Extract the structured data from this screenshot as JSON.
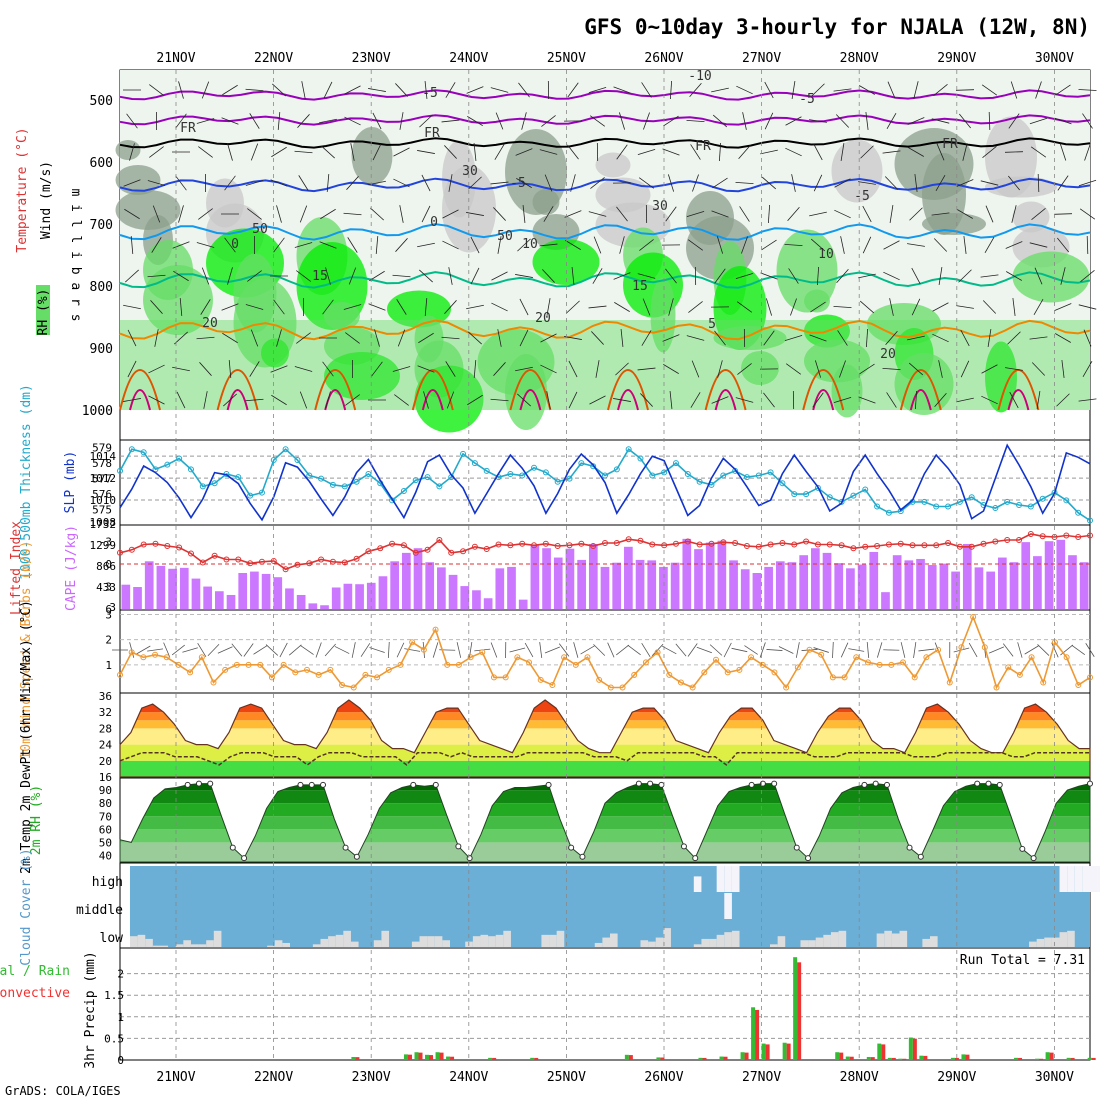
{
  "title": "GFS 0~10day 3-hourly for NJALA (12W, 8N)",
  "credit": "GrADS: COLA/IGES",
  "dates": [
    "21NOV",
    "22NOV",
    "23NOV",
    "24NOV",
    "25NOV",
    "26NOV",
    "27NOV",
    "28NOV",
    "29NOV",
    "30NOV"
  ],
  "colors": {
    "rh_light": "#c8c8c8",
    "rh_mid": "#8ca08c",
    "rh_green": "#66dd66",
    "rh_bright": "#00ee00",
    "temp_purple": "#9900bb",
    "temp_black": "#000000",
    "temp_blue": "#2244dd",
    "temp_lightblue": "#1199ee",
    "temp_teal": "#00bb88",
    "temp_orange": "#ee8800",
    "temp_darkorange": "#dd5500",
    "temp_magenta": "#cc0077",
    "slp": "#1133cc",
    "thickness": "#22aacc",
    "lifted_index": "#dd3333",
    "cape": "#cc77ff",
    "wind": "#ee9933",
    "cloud_bg": "#6baed6",
    "cloud_fill": "#dddddd",
    "precip_total": "#33bb33",
    "precip_conv": "#ee3333"
  },
  "chart_data": [
    {
      "type": "heatmap",
      "name": "upper_air",
      "ylabel": "m i l l i b a r s",
      "yticks": [
        "500",
        "600",
        "700",
        "800",
        "900",
        "1000"
      ],
      "legend_labels": {
        "wind": "Wind (m/s)",
        "temp": "Temperature (°C)",
        "rh": "RH (%)"
      },
      "contour_labels": [
        "-10",
        "-5",
        "-5",
        "FR",
        "FR",
        "FR",
        "FR",
        "-5",
        "-5",
        "0",
        "0",
        "10",
        "10",
        "15",
        "15",
        "20",
        "20",
        "20",
        "30",
        "30",
        "50",
        "50",
        "5"
      ]
    },
    {
      "type": "line",
      "name": "slp_thickness",
      "ylabel_left": "1000-500mb Thickness (dm)",
      "ylabel_right": "SLP (mb)",
      "yticks_left": [
        "575",
        "576",
        "577",
        "578",
        "579"
      ],
      "yticks_right": [
        "1008",
        "1010",
        "1012",
        "1014"
      ],
      "slp": [
        1009.3,
        1011,
        1013.1,
        1012.5,
        1011.6,
        1010.2,
        1008.4,
        1010.1,
        1012.5,
        1012.3,
        1011.5,
        1009.7,
        1008.2,
        1010.3,
        1013.4,
        1013,
        1011.7,
        1010.1,
        1008.6,
        1010.3,
        1012.5,
        1013.7,
        1011.8,
        1010.1,
        1008.4,
        1010.7,
        1013.5,
        1014.1,
        1012.3,
        1011.1,
        1008.8,
        1010.6,
        1012.4,
        1014.1,
        1012.9,
        1011.3,
        1008.8,
        1010.6,
        1012.8,
        1014.2,
        1013.2,
        1011.6,
        1008.8,
        1010.5,
        1012.4,
        1014,
        1013.6,
        1011.1,
        1008.6,
        1009.5,
        1012,
        1013.8,
        1012.8,
        1011.2,
        1009.5,
        1010,
        1012.4,
        1014.1,
        1012.6,
        1011.2,
        1009,
        1009.7,
        1012.6,
        1014.1,
        1012.4,
        1010.9,
        1009.1,
        1010,
        1012.4,
        1014.1,
        1012.9,
        1011.4,
        1008.3,
        1009,
        1012,
        1015,
        1013.2,
        1011.2,
        1008.8,
        1010.6,
        1014.3,
        1013.9,
        1013.3
      ],
      "thickness": [
        577.5,
        578.9,
        578.7,
        577.6,
        577.9,
        578.3,
        577.6,
        576.5,
        576.7,
        577.3,
        577.1,
        575.9,
        576.1,
        578.2,
        578.9,
        578.2,
        577.2,
        577,
        576.6,
        576.5,
        576.8,
        577.3,
        576.7,
        575.6,
        576.2,
        576.9,
        577.1,
        576.5,
        577.1,
        578.6,
        578,
        577.5,
        577.1,
        577.3,
        577.2,
        577.7,
        577.4,
        576.8,
        577,
        578,
        577.8,
        577.2,
        577.6,
        578.9,
        578.3,
        577.2,
        577.4,
        578,
        577.3,
        576.8,
        576.6,
        577.2,
        577.5,
        577.1,
        577.2,
        577.4,
        576.7,
        576,
        576,
        576.4,
        575.8,
        575.5,
        575.9,
        576.3,
        575.2,
        574.8,
        574.9,
        575.5,
        575.5,
        575.2,
        575.2,
        575.5,
        575.8,
        575.3,
        575.1,
        575.5,
        575.3,
        575.2,
        575.7,
        576.1,
        575.6,
        574.8,
        574.3
      ]
    },
    {
      "type": "bar",
      "name": "cape_li",
      "ylabel_left": "Lifted Index",
      "ylabel_right": "CAPE (J/kg)",
      "yticks_left": [
        "-3",
        "0",
        "3",
        "6"
      ],
      "yticks_right": [
        "1732",
        "1299",
        "866",
        "433",
        "3"
      ],
      "cape": [
        520,
        470,
        1020,
        920,
        860,
        880,
        650,
        480,
        380,
        300,
        770,
        800,
        750,
        680,
        440,
        300,
        120,
        80,
        460,
        540,
        530,
        560,
        700,
        1020,
        1200,
        1300,
        1000,
        890,
        730,
        490,
        400,
        230,
        870,
        900,
        200,
        1370,
        1300,
        1100,
        1290,
        1050,
        1390,
        900,
        990,
        1330,
        1050,
        1040,
        900,
        990,
        1500,
        1280,
        1420,
        1460,
        1040,
        850,
        770,
        900,
        1020,
        1000,
        1150,
        1300,
        1200,
        980,
        870,
        950,
        1220,
        360,
        1150,
        1040,
        1070,
        940,
        970,
        800,
        1390,
        890,
        800,
        1100,
        1000,
        1430,
        1130,
        1450,
        1480,
        1150,
        1000
      ],
      "lifted_index": [
        -1.5,
        -1.9,
        -2.6,
        -2.7,
        -2.4,
        -2.2,
        -1.4,
        -0.2,
        -1.1,
        -0.6,
        -0.6,
        -0.1,
        -0.3,
        -0.4,
        0.7,
        0.1,
        -0.1,
        -0.6,
        -0.3,
        -0.2,
        -0.7,
        -1.7,
        -2.1,
        -2.7,
        -2.5,
        -1.5,
        -1.9,
        -3.2,
        -1.5,
        -1.7,
        -2.3,
        -2.0,
        -2.6,
        -2.5,
        -2.7,
        -2.5,
        -2.7,
        -2.4,
        -2.5,
        -2.7,
        -2.4,
        -2.8,
        -2.8,
        -3.3,
        -3.1,
        -2.6,
        -2.5,
        -2.7,
        -3.0,
        -2.6,
        -2.7,
        -2.9,
        -2.8,
        -2.4,
        -2.3,
        -2.6,
        -2.8,
        -2.6,
        -3.0,
        -2.6,
        -2.6,
        -2.5,
        -2.1,
        -2.3,
        -2.4,
        -2.6,
        -2.7,
        -2.5,
        -2.5,
        -2.5,
        -2.8,
        -2.3,
        -2.3,
        -2.7,
        -3.0,
        -3.2,
        -3.2,
        -4.0,
        -3.7,
        -3.6,
        -3.8,
        -3.6,
        -3.8
      ]
    },
    {
      "type": "line",
      "name": "wind10m",
      "ylabel": "10m Wind Speed & Barbs (m/s)",
      "yticks": [
        "1",
        "2",
        "3"
      ],
      "speed": [
        0.6,
        1.5,
        1.3,
        1.4,
        1.3,
        1.0,
        0.7,
        1.3,
        0.3,
        0.8,
        1.0,
        1.0,
        1.0,
        0.5,
        1.0,
        0.7,
        0.8,
        0.6,
        0.8,
        0.2,
        0.1,
        0.6,
        0.5,
        0.8,
        1.0,
        1.9,
        1.6,
        2.4,
        1.0,
        1.0,
        1.3,
        1.5,
        0.5,
        0.5,
        1.3,
        1.1,
        0.4,
        0.2,
        1.3,
        1.0,
        1.3,
        0.4,
        0.1,
        0.1,
        0.6,
        1.1,
        1.5,
        0.6,
        0.3,
        0.1,
        0.7,
        1.2,
        0.7,
        0.8,
        1.3,
        1.0,
        0.7,
        0.1,
        0.9,
        1.6,
        1.4,
        0.5,
        0.5,
        1.3,
        1.1,
        1.0,
        1.0,
        1.1,
        0.5,
        1.3,
        1.6,
        0.3,
        1.7,
        2.9,
        1.7,
        0.1,
        0.9,
        0.6,
        1.3,
        0.3,
        1.9,
        1.3,
        0.2,
        0.5
      ]
    },
    {
      "type": "area",
      "name": "temp2m",
      "ylabel": "2m Temp 2m DewPt (6hr Min/Max) (°C)",
      "yticks": [
        "16",
        "20",
        "24",
        "28",
        "32",
        "36"
      ],
      "temp": [
        24,
        27,
        33,
        34,
        32,
        29,
        25,
        24,
        24,
        23,
        27,
        33,
        34,
        33,
        29,
        25,
        24,
        24,
        23,
        27,
        33,
        35,
        33,
        30,
        25,
        23,
        23,
        22,
        27,
        32,
        33,
        33,
        29,
        25,
        24,
        23,
        22,
        27,
        33,
        35,
        33,
        29,
        25,
        23,
        22,
        22,
        27,
        32,
        33,
        33,
        30,
        25,
        24,
        23,
        22,
        27,
        31,
        33,
        33,
        30,
        25,
        24,
        23,
        22,
        27,
        31,
        33,
        33,
        30,
        25,
        23,
        23,
        22,
        27,
        33,
        34,
        32,
        29,
        25,
        23,
        22,
        22,
        27,
        33,
        34,
        32,
        29,
        25,
        23,
        23
      ],
      "dewpoint": [
        20,
        21,
        22,
        22,
        22,
        21,
        21,
        21,
        20,
        19,
        21,
        22,
        22,
        22,
        21,
        21,
        21,
        19,
        21,
        22,
        22,
        22,
        21,
        21,
        21,
        21,
        19,
        22,
        22,
        22,
        21,
        22,
        21,
        21,
        21,
        21,
        21,
        22,
        22,
        22,
        22,
        22,
        22,
        21,
        21,
        21,
        20,
        22,
        22,
        22,
        22,
        22,
        22,
        21,
        21,
        19,
        22,
        22,
        22,
        22,
        22,
        22,
        22,
        21,
        21,
        21,
        22,
        22,
        22,
        22,
        22,
        22,
        21,
        21,
        21,
        22,
        22,
        22,
        22,
        22,
        22,
        21,
        21,
        22,
        22,
        22,
        22,
        22,
        22
      ]
    },
    {
      "type": "area",
      "name": "rh2m",
      "ylabel": "2m RH (%)",
      "yticks": [
        "40",
        "50",
        "60",
        "70",
        "80",
        "90"
      ],
      "rh": [
        52,
        50,
        68,
        84,
        91,
        92,
        94,
        95,
        95,
        70,
        46,
        38,
        55,
        76,
        89,
        92,
        94,
        94,
        94,
        68,
        46,
        39,
        56,
        76,
        88,
        92,
        94,
        93,
        94,
        70,
        47,
        38,
        56,
        78,
        89,
        92,
        92,
        93,
        94,
        68,
        46,
        39,
        58,
        80,
        88,
        92,
        95,
        95,
        94,
        70,
        47,
        38,
        58,
        78,
        89,
        92,
        94,
        95,
        95,
        70,
        46,
        38,
        55,
        76,
        88,
        92,
        94,
        95,
        94,
        68,
        46,
        39,
        58,
        78,
        89,
        93,
        95,
        95,
        94,
        70,
        45,
        38,
        58,
        80,
        90,
        93,
        95
      ]
    },
    {
      "type": "heatmap",
      "name": "cloud_cover",
      "ylabel": "Cloud Cover (%)",
      "levels": [
        "high",
        "middle",
        "low"
      ],
      "low": [
        40,
        45,
        30,
        5,
        5,
        0,
        10,
        25,
        10,
        10,
        25,
        60,
        0,
        0,
        0,
        0,
        0,
        0,
        5,
        25,
        15,
        0,
        0,
        0,
        10,
        30,
        40,
        45,
        60,
        20,
        0,
        0,
        25,
        60,
        0,
        0,
        0,
        20,
        40,
        40,
        40,
        25,
        0,
        0,
        20,
        40,
        45,
        40,
        45,
        60,
        0,
        0,
        0,
        0,
        45,
        45,
        60,
        0,
        0,
        0,
        0,
        15,
        35,
        50,
        0,
        0,
        0,
        25,
        20,
        35,
        70,
        0,
        0,
        0,
        10,
        30,
        30,
        45,
        55,
        60,
        0,
        0,
        0,
        0,
        10,
        40,
        0,
        0,
        25,
        25,
        35,
        45,
        55,
        60,
        0,
        0,
        0,
        0,
        50,
        60,
        50,
        60,
        0,
        0,
        30,
        40,
        0,
        0,
        0,
        0,
        0,
        0,
        0,
        0,
        0,
        0,
        0,
        0,
        20,
        30,
        35,
        35,
        55,
        60,
        0,
        0
      ],
      "middle": [
        0,
        0,
        0,
        0,
        0,
        0,
        0,
        0,
        0,
        0,
        0,
        0,
        0,
        0,
        0,
        0,
        0,
        0,
        0,
        0,
        0,
        0,
        0,
        0,
        0,
        0,
        0,
        0,
        0,
        0,
        0,
        0,
        0,
        0,
        0,
        0,
        0,
        0,
        0,
        0,
        0,
        0,
        0,
        0,
        0,
        0,
        0,
        0,
        0,
        0,
        0,
        0,
        0,
        0,
        0,
        0,
        0,
        0,
        0,
        0,
        0,
        0,
        0,
        0,
        0,
        0,
        0,
        0,
        0,
        0,
        0,
        0,
        0,
        0,
        0,
        0,
        0,
        0,
        100,
        0,
        0,
        0,
        0,
        0,
        0,
        0,
        0,
        0,
        0,
        0,
        0,
        0,
        0,
        0,
        0,
        0,
        0,
        0,
        0,
        0,
        0,
        0,
        0,
        0,
        0,
        0,
        0,
        0,
        0,
        0,
        0,
        0,
        0,
        0,
        0,
        0,
        0,
        0,
        0,
        0,
        0,
        0,
        0,
        0,
        0,
        0,
        0,
        0
      ],
      "high": [
        0,
        0,
        0,
        0,
        0,
        0,
        0,
        0,
        0,
        0,
        0,
        0,
        0,
        0,
        0,
        0,
        0,
        0,
        0,
        0,
        0,
        0,
        0,
        0,
        0,
        0,
        0,
        0,
        0,
        0,
        0,
        0,
        0,
        0,
        0,
        0,
        0,
        0,
        0,
        0,
        0,
        0,
        0,
        0,
        0,
        0,
        0,
        0,
        0,
        0,
        0,
        0,
        0,
        0,
        0,
        0,
        0,
        0,
        0,
        0,
        0,
        0,
        0,
        0,
        0,
        0,
        0,
        0,
        0,
        0,
        0,
        0,
        0,
        0,
        60,
        0,
        0,
        100,
        100,
        100,
        0,
        0,
        0,
        0,
        0,
        0,
        0,
        0,
        0,
        0,
        0,
        0,
        0,
        0,
        0,
        0,
        0,
        0,
        0,
        0,
        0,
        0,
        0,
        0,
        0,
        0,
        0,
        0,
        0,
        0,
        0,
        0,
        0,
        0,
        0,
        0,
        0,
        0,
        0,
        0,
        0,
        0,
        100,
        100,
        100,
        100,
        100,
        100
      ]
    },
    {
      "type": "bar",
      "name": "precip",
      "ylabel": "3hr Precip (mm)",
      "legend_labels": {
        "total": "Total / Rain",
        "conv": "Convective"
      },
      "annotation": "Run Total = 7.31",
      "yticks": [
        "0",
        "0.5",
        "1",
        "1.5",
        "2"
      ],
      "ylim": [
        0,
        2.5
      ],
      "x_index": [
        22,
        27,
        28,
        29,
        30,
        31,
        35,
        39,
        48,
        51,
        55,
        57,
        59,
        60,
        61,
        63,
        64,
        68,
        69,
        71,
        72,
        73,
        74,
        75,
        76,
        79,
        80,
        85,
        87,
        88,
        90,
        92,
        95,
        98
      ],
      "total": [
        0.07,
        0.13,
        0.18,
        0.12,
        0.18,
        0.08,
        0.05,
        0.05,
        0.12,
        0.06,
        0.05,
        0.08,
        0.18,
        1.22,
        0.38,
        0.4,
        2.38,
        0.18,
        0.08,
        0.07,
        0.38,
        0.05,
        0.03,
        0.52,
        0.1,
        0.05,
        0.13,
        0.05,
        0.03,
        0.18,
        0.05,
        0.05,
        0.05,
        0.05
      ]
    }
  ]
}
